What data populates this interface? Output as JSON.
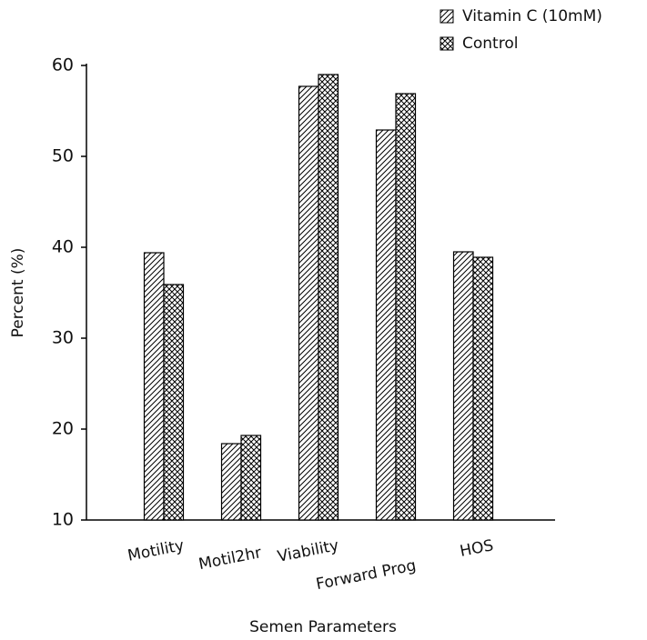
{
  "chart_data": {
    "type": "bar",
    "x_label": "Semen Parameters",
    "y_label": "Percent (%)",
    "categories": [
      "Motility",
      "Motil2hr",
      "Viability",
      "Forward Prog",
      "HOS"
    ],
    "series": [
      {
        "name": "Vitamin C (10mM)",
        "color": "#000000",
        "pattern": "diagonal",
        "values": [
          39.4,
          18.4,
          57.7,
          52.9,
          39.5
        ]
      },
      {
        "name": "Control",
        "color": "#000000",
        "pattern": "crosshatch",
        "values": [
          35.9,
          19.3,
          59.0,
          56.9,
          38.9
        ]
      }
    ],
    "ylim": [
      10,
      60
    ],
    "yticks": [
      10,
      20,
      30,
      40,
      50,
      60
    ],
    "legend": "top-right"
  }
}
